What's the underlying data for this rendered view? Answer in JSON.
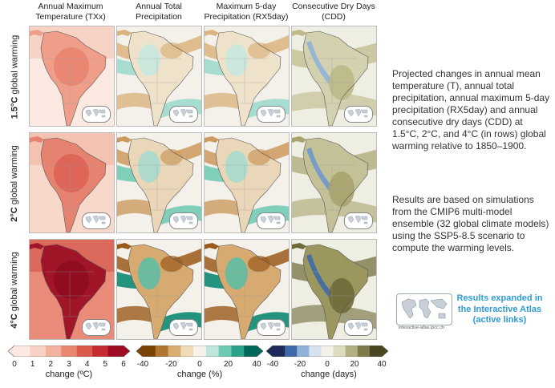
{
  "columns": [
    {
      "title": "Annual Maximum Temperature (TXx)",
      "palette": "temp"
    },
    {
      "title": "Annual Total Precipitation",
      "palette": "precip"
    },
    {
      "title": "Maximum 5-day Precipitation (RX5day)",
      "palette": "precip"
    },
    {
      "title": "Consecutive Dry Days (CDD)",
      "palette": "cdd"
    }
  ],
  "rows": [
    {
      "bold": "1.5°C",
      "rest": " global warming",
      "level": 1
    },
    {
      "bold": "2°C",
      "rest": " global warming",
      "level": 2
    },
    {
      "bold": "4°C",
      "rest": " global warming",
      "level": 3
    }
  ],
  "description_1": "Projected changes in annual mean temperature (T), annual total precipitation, annual maximum 5-day precipitation (RX5day) and annual consecutive dry days (CDD) at 1.5°C, 2°C, and 4°C (in rows) global warming relative to 1850–1900.",
  "description_2": "Results are based on simulations from the CMIP6 multi-model ensemble (32 global climate models) using the SSP5-8.5 scenario to compute the warming levels.",
  "atlas": {
    "link_text": "Results expanded in the Interactive Atlas (active links)",
    "url": "interactive-atlas.ipcc.ch"
  },
  "colorbars": [
    {
      "name": "temperature",
      "ticks": [
        "0",
        "1",
        "2",
        "3",
        "4",
        "5",
        "6"
      ],
      "unit": "change (ºC)",
      "colors": [
        "#fbe9e2",
        "#f8d2c4",
        "#f3b29e",
        "#ea8772",
        "#dc5a4b",
        "#c42c32",
        "#9e0d24"
      ]
    },
    {
      "name": "precipitation",
      "ticks": [
        "-40",
        "-20",
        "0",
        "20",
        "40"
      ],
      "unit": "change (%)",
      "colors": [
        "#7a4306",
        "#b07530",
        "#d7ad72",
        "#efdcb7",
        "#f6f2ea",
        "#bfe6dc",
        "#6fcab4",
        "#2ca28b",
        "#00685b"
      ]
    },
    {
      "name": "dry-days",
      "ticks": [
        "-40",
        "-20",
        "0",
        "20",
        "40"
      ],
      "unit": "change (days)",
      "colors": [
        "#1d2a5a",
        "#3f6aa8",
        "#8fb2d8",
        "#d6e2ee",
        "#f3f1e8",
        "#dcdcc0",
        "#b3b081",
        "#7f7b48",
        "#4a4621"
      ]
    }
  ]
}
